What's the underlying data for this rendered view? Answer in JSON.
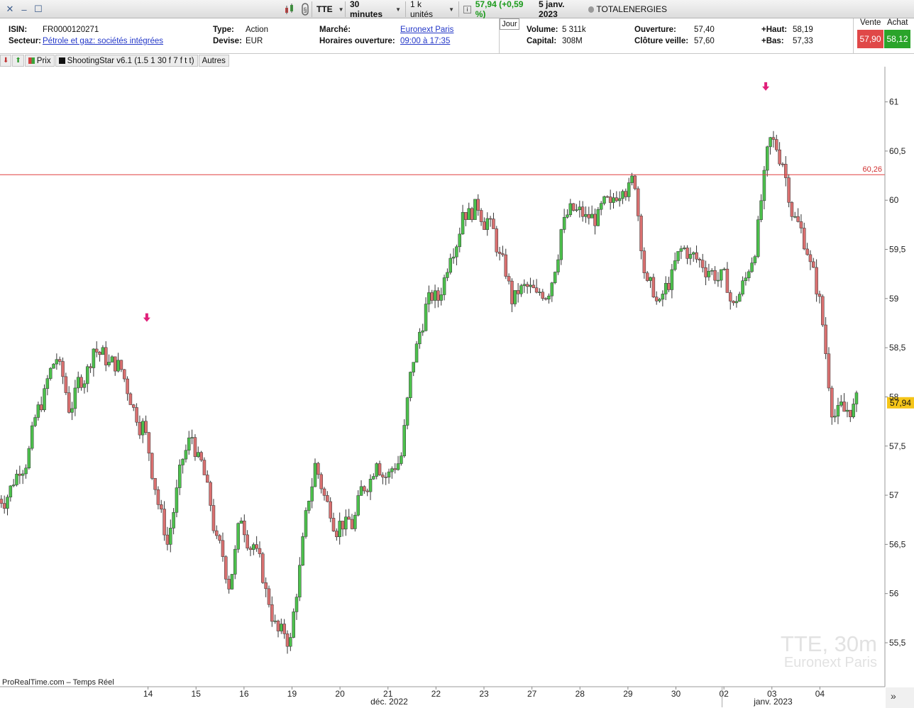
{
  "toolbar": {
    "ticker": "TTE",
    "timeframe": "30 minutes",
    "units": "1 k unités",
    "last_price_change": "57,94 (+0,59 %)",
    "date": "5 janv. 2023",
    "name": "TOTALENERGIES",
    "colors": {
      "up": "#1a9a1a",
      "down": "#c0392b"
    }
  },
  "info": {
    "isin_label": "ISIN:",
    "isin": "FR0000120271",
    "sector_label": "Secteur:",
    "sector": "Pétrole et gaz: sociétés intégrées",
    "type_label": "Type:",
    "type": "Action",
    "currency_label": "Devise:",
    "currency": "EUR",
    "market_label": "Marché:",
    "market": "Euronext Paris",
    "hours_label": "Horaires ouverture:",
    "hours": "09:00 à 17:35",
    "jour": "Jour",
    "volume_label": "Volume:",
    "volume": "5 311k",
    "capital_label": "Capital:",
    "capital": "308M",
    "open_label": "Ouverture:",
    "open": "57,40",
    "prev_close_label": "Clôture veille:",
    "prev_close": "57,60",
    "high_label": "+Haut:",
    "high": "58,19",
    "low_label": "+Bas:",
    "low": "57,33",
    "sell_label": "Vente",
    "sell": "57,90",
    "buy_label": "Achat",
    "buy": "58,12"
  },
  "legend": {
    "price": "Prix",
    "indicator": "ShootingStar v6.1 (1.5 1 30 f 7 f t t)",
    "others": "Autres"
  },
  "footer": {
    "source": "ProRealTime.com – Temps Réel"
  },
  "watermark": {
    "line1": "TTE, 30m",
    "line2": "Euronext Paris"
  },
  "chart_data": {
    "type": "candlestick",
    "y_ticks": [
      "55,5",
      "56",
      "56,5",
      "57",
      "57,5",
      "58",
      "58,5",
      "59",
      "59,5",
      "60",
      "60,5",
      "61"
    ],
    "y_tick_values": [
      55.5,
      56,
      56.5,
      57,
      57.5,
      58,
      58.5,
      59,
      59.5,
      60,
      60.5,
      61
    ],
    "ylim": [
      55.3,
      61.4
    ],
    "x_labels": [
      "14",
      "15",
      "16",
      "19",
      "20",
      "21",
      "22",
      "23",
      "27",
      "28",
      "29",
      "30",
      "02",
      "03",
      "04"
    ],
    "x_label_centers": [
      11.8,
      15.7,
      19.6,
      23.5,
      27.4,
      31.3,
      35.2,
      39.1,
      43.0,
      46.9,
      50.8,
      54.7,
      58.6,
      62.5,
      66.4
    ],
    "x_group_labels": [
      "déc. 2022",
      "janv. 2023"
    ],
    "x_group_centers": [
      31.4,
      62.6
    ],
    "n_bars": 70,
    "resistance": {
      "value": 60.26,
      "label": "60,26"
    },
    "last_price": {
      "value": 57.94,
      "label": "57,94"
    },
    "signals": [
      {
        "bar": 11.7,
        "price": 58.8
      },
      {
        "bar": 62.0,
        "price": 61.15
      }
    ],
    "keypoints_close": [
      [
        0,
        57.0
      ],
      [
        2,
        57.6
      ],
      [
        4,
        58.4
      ],
      [
        5,
        57.9
      ],
      [
        7,
        58.5
      ],
      [
        9,
        58.3
      ],
      [
        10,
        58.0
      ],
      [
        11,
        57.7
      ],
      [
        13,
        56.5
      ],
      [
        14,
        57.2
      ],
      [
        15,
        57.6
      ],
      [
        16,
        57.2
      ],
      [
        17,
        56.5
      ],
      [
        18,
        56.1
      ],
      [
        19,
        56.8
      ],
      [
        20,
        56.5
      ],
      [
        21,
        56.0
      ],
      [
        22,
        55.6
      ],
      [
        23,
        55.5
      ],
      [
        24,
        56.5
      ],
      [
        25,
        57.3
      ],
      [
        26,
        56.9
      ],
      [
        27,
        56.7
      ],
      [
        28,
        56.7
      ],
      [
        29,
        57.1
      ],
      [
        30,
        57.4
      ],
      [
        31,
        57.2
      ],
      [
        32,
        57.4
      ],
      [
        33,
        58.4
      ],
      [
        34,
        58.9
      ],
      [
        35,
        59.0
      ],
      [
        36,
        59.5
      ],
      [
        37,
        59.9
      ],
      [
        38,
        59.9
      ],
      [
        39,
        59.8
      ],
      [
        40,
        59.4
      ],
      [
        41,
        59.0
      ],
      [
        42,
        59.1
      ],
      [
        43,
        59.0
      ],
      [
        44,
        59.1
      ],
      [
        45,
        59.7
      ],
      [
        46,
        59.9
      ],
      [
        47,
        59.8
      ],
      [
        48,
        59.8
      ],
      [
        49,
        59.9
      ],
      [
        50,
        60.2
      ],
      [
        51,
        60.2
      ],
      [
        52,
        59.1
      ],
      [
        53,
        58.9
      ],
      [
        54,
        59.2
      ],
      [
        55,
        59.5
      ],
      [
        56,
        59.4
      ],
      [
        57,
        59.3
      ],
      [
        58,
        59.2
      ],
      [
        59,
        58.9
      ],
      [
        60,
        59.2
      ],
      [
        61,
        59.7
      ],
      [
        62,
        60.6
      ],
      [
        63,
        60.4
      ],
      [
        64,
        59.8
      ],
      [
        65,
        59.5
      ],
      [
        66,
        58.95
      ],
      [
        67,
        57.9
      ],
      [
        68,
        57.85
      ],
      [
        69,
        57.94
      ]
    ]
  }
}
